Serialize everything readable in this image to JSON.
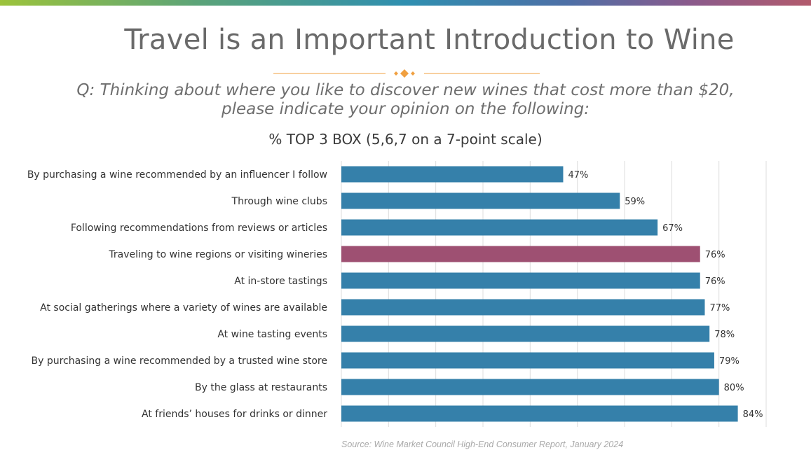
{
  "slide": {
    "title": "Travel is an Important Introduction to Wine",
    "question_line1": "Q: Thinking about where you like to discover new wines that cost more than $20,",
    "question_line2": "please indicate your opinion on the following:",
    "source": "Source: Wine Market Council High-End Consumer Report, January 2024"
  },
  "colors": {
    "bar": "#3580aa",
    "highlight": "#9e5072",
    "divider": "#f0a040",
    "gridline": "#dcdcdc"
  },
  "chart_data": {
    "type": "bar",
    "orientation": "horizontal",
    "title": "% TOP 3 BOX (5,6,7 on a 7-point scale)",
    "xlim": [
      0,
      90
    ],
    "grid": true,
    "categories": [
      "By purchasing a wine recommended by an influencer I follow",
      "Through wine clubs",
      "Following recommendations from reviews or articles",
      "Traveling to wine regions or visiting wineries",
      "At in-store tastings",
      "At social gatherings where a variety of wines are available",
      "At wine tasting events",
      "By purchasing a wine recommended by a trusted wine store",
      "By the glass at restaurants",
      "At friends’ houses for drinks or dinner"
    ],
    "values": [
      47,
      59,
      67,
      76,
      76,
      77,
      78,
      79,
      80,
      84
    ],
    "value_labels": [
      "47%",
      "59%",
      "67%",
      "76%",
      "76%",
      "77%",
      "78%",
      "79%",
      "80%",
      "84%"
    ],
    "highlighted_category": "Traveling to wine regions or visiting wineries"
  }
}
